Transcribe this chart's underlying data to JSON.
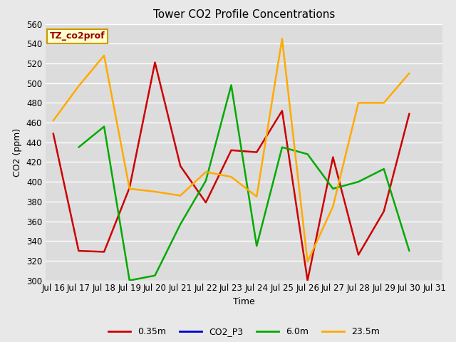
{
  "title": "Tower CO2 Profile Concentrations",
  "xlabel": "Time",
  "ylabel": "CO2 (ppm)",
  "ylim": [
    300,
    560
  ],
  "yticks": [
    300,
    320,
    340,
    360,
    380,
    400,
    420,
    440,
    460,
    480,
    500,
    520,
    540,
    560
  ],
  "fig_bg_color": "#e8e8e8",
  "plot_bg_color": "#dcdcdc",
  "grid_color": "#ffffff",
  "annotation_text": "TZ_co2prof",
  "annotation_bg": "#ffffcc",
  "annotation_border": "#cc9900",
  "annotation_text_color": "#990000",
  "x_labels": [
    "Jul 16",
    "Jul 17",
    "Jul 18",
    "Jul 19",
    "Jul 20",
    "Jul 21",
    "Jul 22",
    "Jul 23",
    "Jul 24",
    "Jul 25",
    "Jul 26",
    "Jul 27",
    "Jul 28",
    "Jul 29",
    "Jul 30",
    "Jul 31"
  ],
  "series": [
    {
      "label": "0.35m",
      "color": "#cc0000",
      "linewidth": 1.8,
      "x": [
        0,
        1,
        2,
        3,
        4,
        5,
        6,
        7,
        8,
        9,
        10,
        11,
        12,
        13,
        14
      ],
      "y": [
        449,
        330,
        329,
        394,
        521,
        416,
        379,
        432,
        430,
        472,
        300,
        425,
        326,
        370,
        469
      ]
    },
    {
      "label": "CO2_P3",
      "color": "#0000cc",
      "linewidth": 1.8,
      "x": [],
      "y": []
    },
    {
      "label": "6.0m",
      "color": "#00aa00",
      "linewidth": 1.8,
      "x": [
        1,
        2,
        3,
        4,
        5,
        6,
        7,
        8,
        9,
        10,
        11,
        12,
        13,
        14
      ],
      "y": [
        435,
        456,
        300,
        305,
        357,
        401,
        498,
        335,
        435,
        428,
        393,
        400,
        413,
        330
      ]
    },
    {
      "label": "23.5m",
      "color": "#ffaa00",
      "linewidth": 1.8,
      "x": [
        0,
        1,
        2,
        3,
        4,
        5,
        6,
        7,
        8,
        9,
        10,
        11,
        12,
        13,
        14
      ],
      "y": [
        462,
        497,
        528,
        393,
        390,
        386,
        410,
        405,
        385,
        545,
        319,
        375,
        480,
        480,
        510
      ]
    }
  ]
}
